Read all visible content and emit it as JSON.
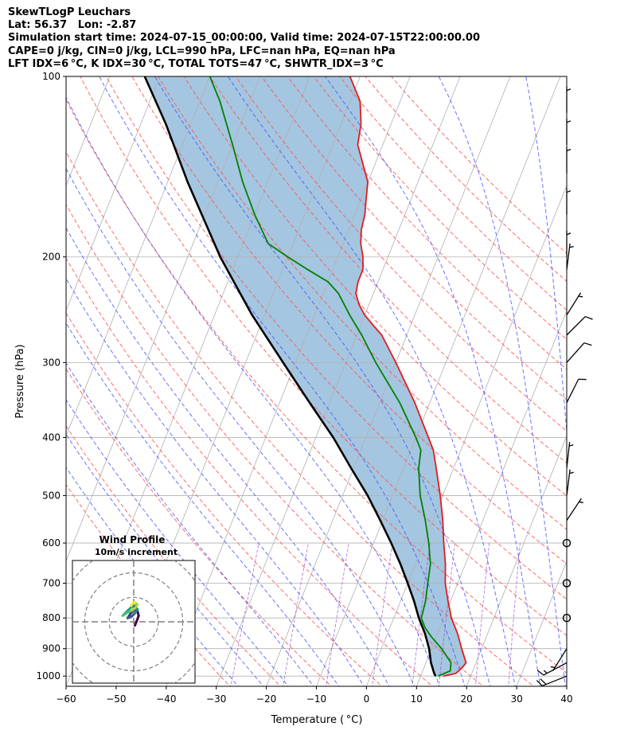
{
  "header": {
    "line1": "SkewTLogP Leuchars",
    "line2": "Lat: 56.37   Lon: -2.87",
    "line3": "Simulation start time: 2024-07-15_00:00:00, Valid time: 2024-07-15T22:00:00.00",
    "line4": "CAPE=0 j/kg, CIN=0 j/kg, LCL=990 hPa, LFC=nan hPa, EQ=nan hPa",
    "line5": "LFT IDX=6 °C, K IDX=30 °C, TOTAL TOTS=47 °C, SHWTR_IDX=3 °C"
  },
  "chart_data": {
    "type": "line",
    "xlabel": "Temperature ( °C)",
    "ylabel": "Pressure (hPa)",
    "xlim": [
      -60,
      40
    ],
    "ylim": [
      1040,
      100
    ],
    "log_y": true,
    "grid": true,
    "x_ticks": [
      "−60",
      "−50",
      "−40",
      "−30",
      "−20",
      "−10",
      "0",
      "10",
      "20",
      "30",
      "40"
    ],
    "x_tick_values": [
      -60,
      -50,
      -40,
      -30,
      -20,
      -10,
      0,
      10,
      20,
      30,
      40
    ],
    "y_ticks": [
      "100",
      "200",
      "300",
      "400",
      "500",
      "600",
      "700",
      "800",
      "900",
      "1000"
    ],
    "y_tick_values": [
      100,
      200,
      300,
      400,
      500,
      600,
      700,
      800,
      900,
      1000
    ],
    "series": [
      {
        "color": "#e31a1c",
        "role": "temperature",
        "points": [
          [
            1000,
            14.5
          ],
          [
            990,
            16.8
          ],
          [
            970,
            17.6
          ],
          [
            950,
            18.0
          ],
          [
            900,
            16.0
          ],
          [
            850,
            14.0
          ],
          [
            800,
            11.5
          ],
          [
            750,
            9.5
          ],
          [
            700,
            7.5
          ],
          [
            650,
            6.0
          ],
          [
            600,
            4.0
          ],
          [
            550,
            2.0
          ],
          [
            500,
            -0.5
          ],
          [
            450,
            -3.5
          ],
          [
            420,
            -5.5
          ],
          [
            400,
            -7.5
          ],
          [
            350,
            -13.0
          ],
          [
            300,
            -20.0
          ],
          [
            270,
            -25.0
          ],
          [
            260,
            -27.5
          ],
          [
            250,
            -30.0
          ],
          [
            240,
            -32.0
          ],
          [
            230,
            -33.5
          ],
          [
            220,
            -34.0
          ],
          [
            210,
            -34.0
          ],
          [
            200,
            -35.0
          ],
          [
            190,
            -36.5
          ],
          [
            180,
            -37.5
          ],
          [
            170,
            -38.0
          ],
          [
            160,
            -39.0
          ],
          [
            150,
            -40.0
          ],
          [
            130,
            -45.0
          ],
          [
            120,
            -46.0
          ],
          [
            110,
            -48.0
          ],
          [
            100,
            -52.0
          ]
        ]
      },
      {
        "color": "#008000",
        "role": "dewpoint",
        "points": [
          [
            1000,
            13.5
          ],
          [
            980,
            15.5
          ],
          [
            950,
            15.0
          ],
          [
            900,
            12.0
          ],
          [
            860,
            9.0
          ],
          [
            830,
            7.0
          ],
          [
            800,
            5.5
          ],
          [
            750,
            5.0
          ],
          [
            700,
            4.0
          ],
          [
            650,
            3.0
          ],
          [
            600,
            1.0
          ],
          [
            550,
            -1.5
          ],
          [
            500,
            -4.5
          ],
          [
            450,
            -7.0
          ],
          [
            420,
            -8.0
          ],
          [
            400,
            -10.0
          ],
          [
            350,
            -16.0
          ],
          [
            300,
            -24.0
          ],
          [
            270,
            -29.0
          ],
          [
            250,
            -33.0
          ],
          [
            230,
            -37.0
          ],
          [
            220,
            -40.0
          ],
          [
            210,
            -45.0
          ],
          [
            200,
            -50.0
          ],
          [
            190,
            -55.0
          ],
          [
            170,
            -60.0
          ],
          [
            150,
            -65.0
          ],
          [
            130,
            -70.0
          ],
          [
            110,
            -76.0
          ],
          [
            100,
            -80.0
          ]
        ]
      },
      {
        "color": "#000000",
        "role": "parcel",
        "points": [
          [
            1000,
            13.0
          ],
          [
            990,
            12.5
          ],
          [
            950,
            11.0
          ],
          [
            900,
            9.5
          ],
          [
            850,
            7.5
          ],
          [
            800,
            5.0
          ],
          [
            750,
            2.7
          ],
          [
            700,
            0.0
          ],
          [
            650,
            -3.0
          ],
          [
            600,
            -6.5
          ],
          [
            550,
            -10.5
          ],
          [
            500,
            -15.0
          ],
          [
            450,
            -20.5
          ],
          [
            400,
            -26.5
          ],
          [
            350,
            -34.0
          ],
          [
            300,
            -42.5
          ],
          [
            250,
            -52.5
          ],
          [
            200,
            -63.5
          ],
          [
            150,
            -76.0
          ],
          [
            120,
            -85.0
          ],
          [
            100,
            -93.0
          ]
        ]
      }
    ],
    "wind_barbs": [
      {
        "p": 1000,
        "u": -20,
        "v": -8
      },
      {
        "p": 950,
        "u": -15,
        "v": -8
      },
      {
        "p": 900,
        "u": -5,
        "v": -8
      },
      {
        "p": 800,
        "calm": true
      },
      {
        "p": 700,
        "calm": true
      },
      {
        "p": 600,
        "calm": true
      },
      {
        "p": 550,
        "u": 4,
        "v": 6
      },
      {
        "p": 500,
        "u": 1,
        "v": 8
      },
      {
        "p": 450,
        "u": 1,
        "v": 9
      },
      {
        "p": 350,
        "u": 5,
        "v": 10
      },
      {
        "p": 300,
        "u": 8,
        "v": 9
      },
      {
        "p": 270,
        "u": 8,
        "v": 8
      },
      {
        "p": 250,
        "u": 5,
        "v": 8
      },
      {
        "p": 210,
        "u": 1,
        "v": 8
      },
      {
        "p": 200,
        "u": 0,
        "v": 5
      },
      {
        "p": 170,
        "u": 0,
        "v": 5
      },
      {
        "p": 145,
        "u": 0,
        "v": 9
      },
      {
        "p": 130,
        "u": 0,
        "v": 9
      },
      {
        "p": 115,
        "u": 0,
        "v": 9
      }
    ],
    "hodograph": {
      "title": "Wind Profile",
      "subtitle": "10m/s increment",
      "rings": [
        10,
        20,
        30,
        40
      ],
      "range": 25,
      "points": [
        [
          0.5,
          -1.5
        ],
        [
          1.5,
          1.0
        ],
        [
          2.0,
          2.5
        ],
        [
          1.5,
          4.5
        ],
        [
          0.0,
          5.0
        ],
        [
          -1.5,
          3.0
        ],
        [
          -2.5,
          1.5
        ],
        [
          -1.0,
          2.0
        ],
        [
          0.5,
          3.5
        ],
        [
          1.5,
          5.0
        ],
        [
          0.5,
          6.5
        ],
        [
          -1.0,
          6.0
        ],
        [
          -2.0,
          5.0
        ],
        [
          -3.5,
          3.5
        ],
        [
          -4.5,
          2.5
        ],
        [
          -3.0,
          3.5
        ],
        [
          -1.0,
          4.5
        ],
        [
          0.5,
          5.5
        ],
        [
          1.5,
          7.0
        ],
        [
          0.5,
          8.0
        ],
        [
          -0.5,
          7.5
        ],
        [
          -1.0,
          6.5
        ]
      ]
    }
  }
}
